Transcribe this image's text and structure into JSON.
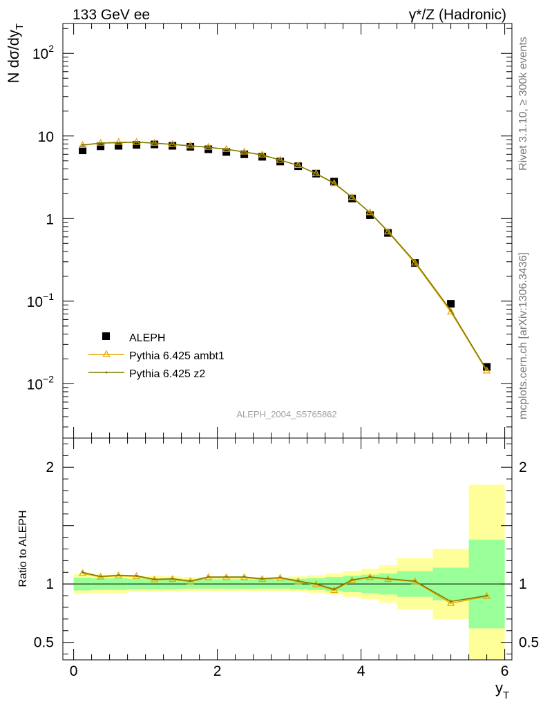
{
  "header": {
    "left_title": "133 GeV ee",
    "right_title": "γ*/Z (Hadronic)"
  },
  "side_labels": {
    "generator": "Rivet 3.1.10, ≥ 300k events",
    "source": "mcplots.cern.ch [arXiv:1306.3436]"
  },
  "analysis_id": "ALEPH_2004_S5765862",
  "colors": {
    "data": "#000000",
    "ambt1": "#e8a800",
    "z2": "#7a7a00",
    "band_inner": "#99ff99",
    "band_outer": "#ffff99"
  },
  "chart_data": [
    {
      "type": "scatter",
      "panel": "main",
      "ylabel_main": "N dσ/dy",
      "ylabel_sub": "T",
      "yscale": "log",
      "xlim": [
        -0.15,
        6.1
      ],
      "ylim": [
        0.0022,
        230
      ],
      "y_tick_labels": [
        {
          "value": 0.01,
          "base": "10",
          "exp": "−2"
        },
        {
          "value": 0.1,
          "base": "10",
          "exp": "−1"
        },
        {
          "value": 1,
          "base": "1",
          "exp": ""
        },
        {
          "value": 10,
          "base": "10",
          "exp": ""
        },
        {
          "value": 100,
          "base": "10",
          "exp": "2"
        }
      ],
      "legend_position": "bottom-left",
      "series": [
        {
          "name": "ALEPH",
          "style": "marker",
          "x": [
            0.125,
            0.375,
            0.625,
            0.875,
            1.125,
            1.375,
            1.625,
            1.875,
            2.125,
            2.375,
            2.625,
            2.875,
            3.125,
            3.375,
            3.625,
            3.875,
            4.125,
            4.375,
            4.75,
            5.25,
            5.75
          ],
          "y": [
            6.7,
            7.5,
            7.6,
            7.8,
            7.9,
            7.6,
            7.4,
            6.9,
            6.4,
            6.0,
            5.6,
            4.9,
            4.3,
            3.5,
            2.8,
            1.75,
            1.1,
            0.67,
            0.29,
            0.093,
            0.016
          ]
        },
        {
          "name": "Pythia 6.425 ambt1",
          "style": "triangle",
          "x": [
            0.125,
            0.375,
            0.625,
            0.875,
            1.125,
            1.375,
            1.625,
            1.875,
            2.125,
            2.375,
            2.625,
            2.875,
            3.125,
            3.375,
            3.625,
            3.875,
            4.125,
            4.375,
            4.75,
            5.25,
            5.75
          ],
          "y": [
            7.7,
            8.2,
            8.4,
            8.4,
            8.2,
            7.9,
            7.6,
            7.3,
            6.9,
            6.4,
            5.9,
            5.1,
            4.4,
            3.5,
            2.65,
            1.8,
            1.18,
            0.69,
            0.29,
            0.074,
            0.0143
          ]
        },
        {
          "name": "Pythia 6.425 z2",
          "style": "line",
          "x": [
            0.125,
            0.375,
            0.625,
            0.875,
            1.125,
            1.375,
            1.625,
            1.875,
            2.125,
            2.375,
            2.625,
            2.875,
            3.125,
            3.375,
            3.625,
            3.875,
            4.125,
            4.375,
            4.75,
            5.25,
            5.75
          ],
          "y": [
            7.8,
            8.2,
            8.3,
            8.4,
            8.2,
            7.9,
            7.6,
            7.3,
            6.9,
            6.4,
            5.9,
            5.1,
            4.4,
            3.5,
            2.7,
            1.81,
            1.18,
            0.7,
            0.3,
            0.077,
            0.0146
          ]
        }
      ]
    },
    {
      "type": "line",
      "panel": "ratio",
      "ylabel": "Ratio to ALEPH",
      "xlabel": "y",
      "xlabel_sub": "T",
      "xlim": [
        -0.15,
        6.1
      ],
      "ylim": [
        0.35,
        2.25
      ],
      "x_ticks": [
        0,
        2,
        4,
        6
      ],
      "y_ticks": [
        0.5,
        1,
        2
      ],
      "reference_line": 1,
      "bands": {
        "x_edges": [
          0,
          0.25,
          0.5,
          0.75,
          1.0,
          1.25,
          1.5,
          1.75,
          2.0,
          2.25,
          2.5,
          2.75,
          3.0,
          3.25,
          3.5,
          3.75,
          4.0,
          4.25,
          4.5,
          5.0,
          5.5,
          6.0
        ],
        "inner": [
          0.055,
          0.05,
          0.05,
          0.045,
          0.045,
          0.045,
          0.04,
          0.04,
          0.04,
          0.04,
          0.04,
          0.04,
          0.045,
          0.05,
          0.06,
          0.07,
          0.08,
          0.09,
          0.11,
          0.14,
          0.38
        ],
        "outer": [
          0.085,
          0.08,
          0.08,
          0.07,
          0.07,
          0.065,
          0.06,
          0.06,
          0.06,
          0.06,
          0.06,
          0.06,
          0.065,
          0.075,
          0.09,
          0.11,
          0.13,
          0.16,
          0.22,
          0.3,
          0.85
        ]
      },
      "series": [
        {
          "name": "Pythia 6.425 ambt1",
          "style": "triangle",
          "x": [
            0.125,
            0.375,
            0.625,
            0.875,
            1.125,
            1.375,
            1.625,
            1.875,
            2.125,
            2.375,
            2.625,
            2.875,
            3.125,
            3.375,
            3.625,
            3.875,
            4.125,
            4.375,
            4.75,
            5.25,
            5.75
          ],
          "y": [
            1.09,
            1.06,
            1.07,
            1.065,
            1.035,
            1.04,
            1.02,
            1.055,
            1.055,
            1.055,
            1.04,
            1.05,
            1.02,
            0.995,
            0.945,
            1.03,
            1.055,
            1.04,
            1.02,
            0.835,
            0.895
          ]
        },
        {
          "name": "Pythia 6.425 z2",
          "style": "line",
          "x": [
            0.125,
            0.375,
            0.625,
            0.875,
            1.125,
            1.375,
            1.625,
            1.875,
            2.125,
            2.375,
            2.625,
            2.875,
            3.125,
            3.375,
            3.625,
            3.875,
            4.125,
            4.375,
            4.75,
            5.25,
            5.75
          ],
          "y": [
            1.1,
            1.065,
            1.075,
            1.07,
            1.04,
            1.045,
            1.025,
            1.06,
            1.06,
            1.06,
            1.045,
            1.055,
            1.025,
            1.0,
            0.955,
            1.035,
            1.06,
            1.045,
            1.025,
            0.85,
            0.9
          ]
        }
      ]
    }
  ]
}
